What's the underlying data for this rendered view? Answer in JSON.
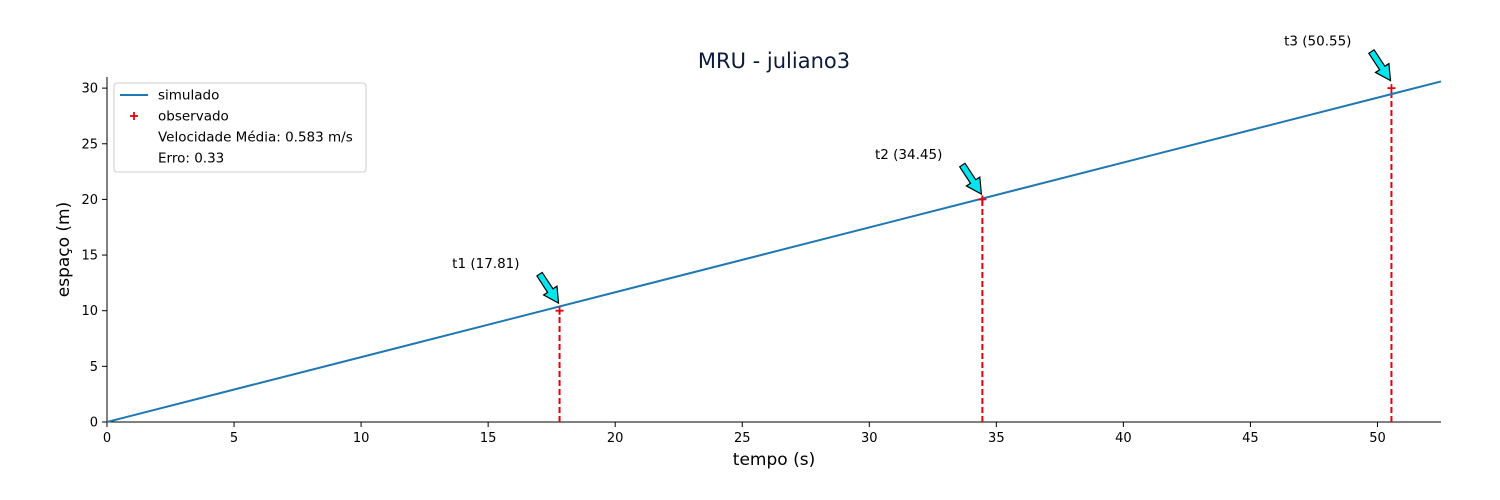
{
  "chart_data": {
    "type": "line",
    "title": "MRU - juliano3",
    "xlabel": "tempo (s)",
    "ylabel": "espaço (m)",
    "xlim": [
      0,
      52.5
    ],
    "ylim": [
      0,
      31
    ],
    "xticks": [
      0,
      5,
      10,
      15,
      20,
      25,
      30,
      35,
      40,
      45,
      50
    ],
    "yticks": [
      0,
      5,
      10,
      15,
      20,
      25,
      30
    ],
    "grid": false,
    "legend_position": "top-left",
    "series": [
      {
        "name": "simulado",
        "style": "line",
        "color": "#1f77b4",
        "x": [
          0,
          52.5
        ],
        "y": [
          0,
          30.6
        ]
      },
      {
        "name": "observado",
        "style": "marker-plus",
        "color": "#e8000b",
        "x": [
          17.81,
          34.45,
          50.55
        ],
        "y": [
          10,
          20,
          30
        ]
      }
    ],
    "vlines": {
      "color": "#e8000b",
      "style": "dashed",
      "x": [
        17.81,
        34.45,
        50.55
      ]
    },
    "legend_extra": [
      "Velocidade Média: 0.583 m/s",
      "Erro: 0.33"
    ],
    "annotations": [
      {
        "text": "t1 (17.81)",
        "x": 17.81,
        "y": 10.5
      },
      {
        "text": "t2 (34.45)",
        "x": 34.45,
        "y": 20.3
      },
      {
        "text": "t3 (50.55)",
        "x": 50.55,
        "y": 30.5
      }
    ],
    "annotation_arrow_color": "#00e5ee"
  }
}
